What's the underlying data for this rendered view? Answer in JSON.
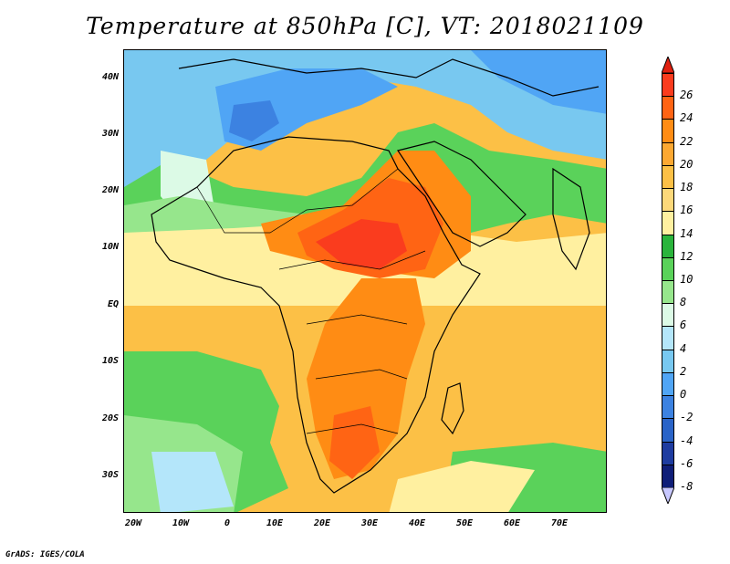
{
  "title": "Temperature at 850hPa [C], VT: 2018021109",
  "credit": "GrADS: IGES/COLA",
  "axes": {
    "lat_labels": [
      "40N",
      "30N",
      "20N",
      "10N",
      "EQ",
      "10S",
      "20S",
      "30S"
    ],
    "lon_labels": [
      "20W",
      "10W",
      "0",
      "10E",
      "20E",
      "30E",
      "40E",
      "50E",
      "60E",
      "70E"
    ]
  },
  "colorbar": {
    "labels": [
      "26",
      "24",
      "22",
      "20",
      "18",
      "16",
      "14",
      "12",
      "10",
      "8",
      "6",
      "4",
      "2",
      "0",
      "-2",
      "-4",
      "-6",
      "-8"
    ],
    "colors": [
      "#fa3c1e",
      "#ff6414",
      "#ff8c14",
      "#fca832",
      "#fcc046",
      "#fcd87a",
      "#fff0a0",
      "#2ab43c",
      "#5ad25a",
      "#96e68c",
      "#dcfae6",
      "#b4e6fa",
      "#78c8f0",
      "#50a5f5",
      "#3c82e1",
      "#2a64c8",
      "#1e3ca0",
      "#0f1e78"
    ],
    "over_color": "#e02010",
    "under_color": "#c8c8ff"
  },
  "map_colors": {
    "ocean_warm": "#fcc046",
    "ocean_mid": "#fff0a0",
    "hot": "#fa3c1e",
    "hotter": "#ff6414",
    "warm": "#ff8c14",
    "green": "#5ad25a",
    "green_dark": "#2ab43c",
    "mint": "#96e68c",
    "pale": "#dcfae6",
    "sky": "#b4e6fa",
    "blue": "#78c8f0",
    "blue_mid": "#50a5f5",
    "blue_dark": "#3c82e1"
  }
}
